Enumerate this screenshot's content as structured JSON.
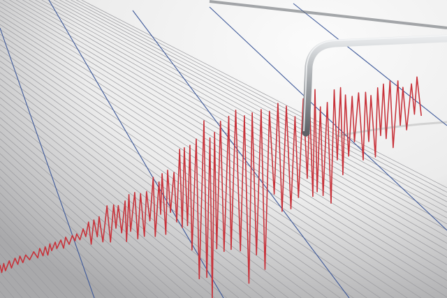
{
  "image": {
    "subject": "seismograph",
    "colors": {
      "paper": "#f4f4f4",
      "paper_shadow": "#a9a9ab",
      "grid_line": "#9a9a9e",
      "blue_line": "#3f5a9a",
      "trace": "#c8323a",
      "needle": "#b8bcc0"
    }
  }
}
